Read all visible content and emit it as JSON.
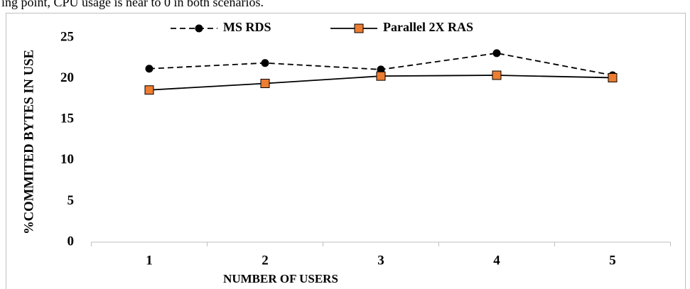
{
  "caption": "ing point, CPU usage is near to 0 in both scenarios.",
  "chart_data": {
    "type": "line",
    "x_label": "NUMBER OF USERS",
    "y_label": "%COMMITED BYTES IN USE",
    "categories": [
      "1",
      "2",
      "3",
      "4",
      "5"
    ],
    "series": [
      {
        "name": "MS RDS",
        "color": "#000000",
        "dashed": true,
        "marker": "circle",
        "marker_color": "#000000",
        "values": [
          21.2,
          21.9,
          21.1,
          23.1,
          20.4
        ]
      },
      {
        "name": "Parallel 2X RAS",
        "color": "#000000",
        "dashed": false,
        "marker": "square",
        "marker_color": "#ed7d31",
        "values": [
          18.6,
          19.4,
          20.3,
          20.4,
          20.1
        ]
      }
    ],
    "ylim": [
      0,
      25
    ],
    "yticks": [
      0,
      5,
      10,
      15,
      20,
      25
    ],
    "grid": false,
    "legend": "top"
  }
}
